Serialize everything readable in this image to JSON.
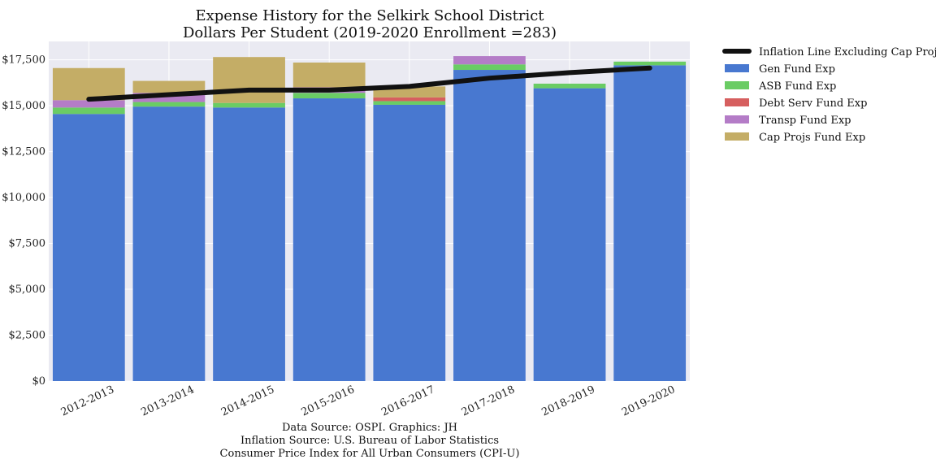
{
  "chart_data": {
    "type": "bar",
    "stacked": true,
    "title": "Expense History for the Selkirk School District",
    "subtitle": "Dollars Per Student (2019-2020 Enrollment =283)",
    "xlabel": "",
    "ylabel": "",
    "ylim": [
      0,
      18500
    ],
    "y_ticks": [
      0,
      2500,
      5000,
      7500,
      10000,
      12500,
      15000,
      17500
    ],
    "y_tick_labels": [
      "$0",
      "$2,500",
      "$5,000",
      "$7,500",
      "$10,000",
      "$12,500",
      "$15,000",
      "$17,500"
    ],
    "categories": [
      "2012-2013",
      "2013-2014",
      "2014-2015",
      "2015-2016",
      "2016-2017",
      "2017-2018",
      "2018-2019",
      "2019-2020"
    ],
    "series": [
      {
        "name": "Gen Fund Exp",
        "color": "#4878d0",
        "values": [
          14550,
          14950,
          14900,
          15400,
          15050,
          16950,
          15950,
          17200
        ]
      },
      {
        "name": "ASB Fund Exp",
        "color": "#6acc64",
        "values": [
          350,
          250,
          250,
          300,
          200,
          300,
          250,
          200
        ]
      },
      {
        "name": "Debt Serv Fund Exp",
        "color": "#d65f5f",
        "values": [
          0,
          0,
          0,
          0,
          200,
          0,
          0,
          0
        ]
      },
      {
        "name": "Transp Fund Exp",
        "color": "#b47cc7",
        "values": [
          400,
          500,
          0,
          300,
          0,
          450,
          0,
          0
        ]
      },
      {
        "name": "Cap Projs Fund Exp",
        "color": "#c4ad66",
        "values": [
          1750,
          650,
          2500,
          1350,
          600,
          0,
          0,
          0
        ]
      }
    ],
    "line": {
      "name": "Inflation Line Excluding Cap Projs",
      "color": "#111111",
      "values": [
        15350,
        15600,
        15850,
        15850,
        16050,
        16500,
        16800,
        17050
      ]
    },
    "grid": true,
    "legend_position": "outside-right"
  },
  "source_lines": [
    "Data Source: OSPI. Graphics: JH",
    "Inflation Source: U.S. Bureau of Labor Statistics",
    "Consumer Price Index for All Urban Consumers (CPI-U)"
  ]
}
